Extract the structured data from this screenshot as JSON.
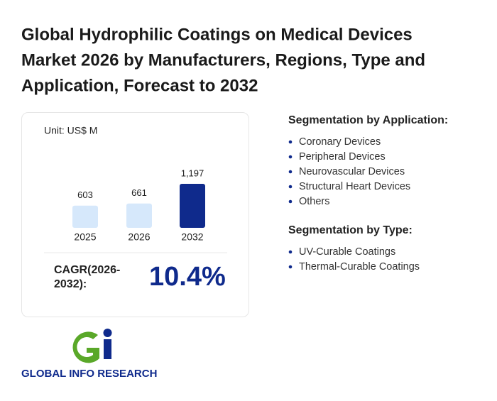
{
  "title": [
    "Global Hydrophilic Coatings on Medical Devices",
    "Market 2026 by Manufacturers, Regions, Type and",
    "Application, Forecast to 2032"
  ],
  "chart_data": {
    "type": "bar",
    "unit": "Unit: US$ M",
    "categories": [
      "2025",
      "2026",
      "2032"
    ],
    "values": [
      603,
      661,
      1197
    ],
    "value_labels": [
      "603",
      "661",
      "1,197"
    ],
    "colors": [
      "#d6e8fb",
      "#d6e8fb",
      "#0f2a8c"
    ]
  },
  "cagr": {
    "label": [
      "CAGR(2026-",
      "2032):"
    ],
    "value": "10.4%"
  },
  "segments": [
    {
      "heading": "Segmentation by Application:",
      "items": [
        "Coronary Devices",
        "Peripheral Devices",
        "Neurovascular Devices",
        "Structural Heart Devices",
        "Others"
      ]
    },
    {
      "heading": "Segmentation by Type:",
      "items": [
        "UV-Curable Coatings",
        "Thermal-Curable Coatings"
      ]
    }
  ],
  "logo": {
    "text": "GLOBAL INFO RESEARCH"
  }
}
